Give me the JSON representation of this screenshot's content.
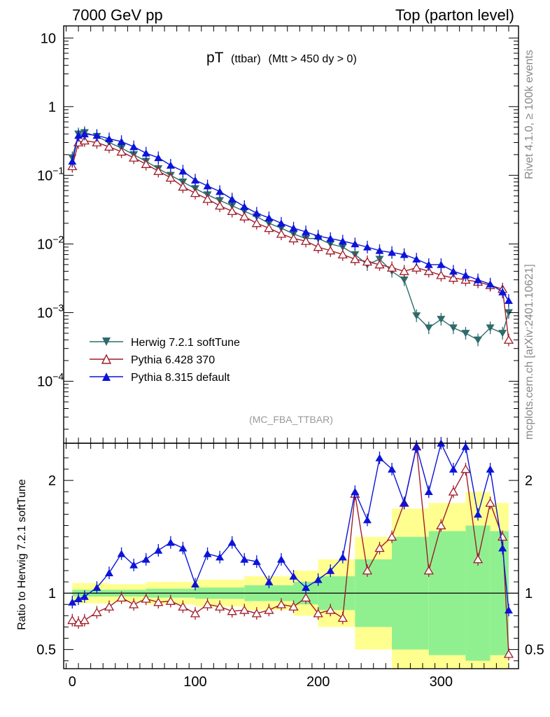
{
  "header": {
    "left": "7000 GeV pp",
    "right": "Top (parton level)"
  },
  "side": {
    "rivet": "Rivet 4.1.0, ≥ 100k events",
    "mcplots": "mcplots.cern.ch [arXiv:2401.10621]"
  },
  "main_title": {
    "pt": "pT",
    "sub": "(ttbar)",
    "cut": "(Mtt > 450 dy > 0)"
  },
  "analysis": "(MC_FBA_TTBAR)",
  "ratio_ylabel": "Ratio to Herwig 7.2.1 softTune",
  "legend": [
    {
      "label": "Herwig 7.2.1 softTune",
      "color": "#2e6b6b",
      "marker": "down-filled"
    },
    {
      "label": "Pythia 6.428 370",
      "color": "#a01c2a",
      "marker": "up-open"
    },
    {
      "label": "Pythia 8.315 default",
      "color": "#0b14d8",
      "marker": "up-filled"
    }
  ],
  "colors": {
    "band_stat": "#90f090",
    "band_tot": "#ffff90",
    "frame": "#000000",
    "side_text": "#888888"
  },
  "chart_data": {
    "type": "line",
    "xlabel": "",
    "xlim": [
      -7,
      363
    ],
    "xticks": [
      0,
      100,
      200,
      300
    ],
    "main": {
      "yscale": "log",
      "ylim": [
        1.25e-05,
        15
      ],
      "yticks": [
        {
          "v": 10,
          "label": "10"
        },
        {
          "v": 1,
          "label": "1"
        },
        {
          "v": 0.1,
          "label": "10",
          "exp": "−1"
        },
        {
          "v": 0.01,
          "label": "10",
          "exp": "−2"
        },
        {
          "v": 0.001,
          "label": "10",
          "exp": "−3"
        },
        {
          "v": 0.0001,
          "label": "10",
          "exp": "−4"
        }
      ]
    },
    "ratio": {
      "yscale": "linear",
      "ylim": [
        0.33,
        2.33
      ],
      "yticks": [
        {
          "v": 0.5,
          "label": "0.5"
        },
        {
          "v": 1,
          "label": "1"
        },
        {
          "v": 2,
          "label": "2"
        }
      ]
    },
    "series": [
      {
        "name": "Herwig 7.2.1 softTune",
        "x": [
          0,
          5,
          10,
          20,
          30,
          40,
          50,
          60,
          70,
          80,
          90,
          100,
          110,
          120,
          130,
          140,
          150,
          160,
          170,
          180,
          190,
          200,
          210,
          220,
          230,
          240,
          250,
          260,
          270,
          280,
          290,
          300,
          310,
          320,
          330,
          340,
          350,
          355
        ],
        "y": [
          0.18,
          0.4,
          0.42,
          0.37,
          0.3,
          0.25,
          0.2,
          0.16,
          0.125,
          0.1,
          0.08,
          0.064,
          0.052,
          0.043,
          0.036,
          0.03,
          0.025,
          0.02,
          0.017,
          0.014,
          0.012,
          0.012,
          0.01,
          0.009,
          0.007,
          0.005,
          0.006,
          0.004,
          0.003,
          0.0009,
          0.0006,
          0.0008,
          0.0006,
          0.0005,
          0.0004,
          0.0006,
          0.0005,
          0.001
        ]
      },
      {
        "name": "Pythia 6.428 370",
        "x": [
          0,
          5,
          10,
          20,
          30,
          40,
          50,
          60,
          70,
          80,
          90,
          100,
          110,
          120,
          130,
          140,
          150,
          160,
          170,
          180,
          190,
          200,
          210,
          220,
          230,
          240,
          250,
          260,
          270,
          280,
          290,
          300,
          310,
          320,
          330,
          340,
          350,
          355
        ],
        "y": [
          0.135,
          0.3,
          0.32,
          0.3,
          0.26,
          0.22,
          0.18,
          0.145,
          0.115,
          0.092,
          0.068,
          0.055,
          0.045,
          0.036,
          0.03,
          0.025,
          0.02,
          0.017,
          0.014,
          0.012,
          0.011,
          0.009,
          0.008,
          0.007,
          0.006,
          0.0055,
          0.005,
          0.0045,
          0.004,
          0.0045,
          0.004,
          0.0035,
          0.0032,
          0.003,
          0.0028,
          0.0025,
          0.0022,
          0.0004
        ]
      },
      {
        "name": "Pythia 8.315 default",
        "x": [
          0,
          5,
          10,
          20,
          30,
          40,
          50,
          60,
          70,
          80,
          90,
          100,
          110,
          120,
          130,
          140,
          150,
          160,
          170,
          180,
          190,
          200,
          210,
          220,
          230,
          240,
          250,
          260,
          270,
          280,
          290,
          300,
          310,
          320,
          330,
          340,
          350,
          355
        ],
        "y": [
          0.16,
          0.38,
          0.4,
          0.38,
          0.34,
          0.31,
          0.26,
          0.21,
          0.18,
          0.14,
          0.115,
          0.085,
          0.07,
          0.058,
          0.045,
          0.035,
          0.028,
          0.024,
          0.02,
          0.017,
          0.015,
          0.013,
          0.012,
          0.011,
          0.01,
          0.009,
          0.008,
          0.0075,
          0.007,
          0.006,
          0.005,
          0.005,
          0.004,
          0.0035,
          0.003,
          0.0026,
          0.002,
          0.0015
        ]
      }
    ],
    "ratio_series": [
      {
        "name": "Pythia 6.428 370",
        "x": [
          0,
          5,
          10,
          20,
          30,
          40,
          50,
          60,
          70,
          80,
          90,
          100,
          110,
          120,
          130,
          140,
          150,
          160,
          170,
          180,
          190,
          200,
          210,
          220,
          230,
          240,
          250,
          260,
          270,
          280,
          290,
          300,
          310,
          320,
          330,
          340,
          350,
          355
        ],
        "y": [
          0.76,
          0.74,
          0.76,
          0.83,
          0.88,
          0.96,
          0.9,
          0.95,
          0.92,
          0.93,
          0.88,
          0.82,
          0.9,
          0.88,
          0.84,
          0.85,
          0.82,
          0.85,
          0.9,
          0.88,
          0.96,
          0.82,
          0.85,
          0.78,
          1.88,
          1.2,
          1.4,
          1.5,
          1.8,
          2.3,
          1.2,
          1.6,
          1.9,
          2.1,
          1.3,
          1.8,
          1.5,
          0.46
        ]
      },
      {
        "name": "Pythia 8.315 default",
        "x": [
          0,
          5,
          10,
          20,
          30,
          40,
          50,
          60,
          70,
          80,
          90,
          100,
          110,
          120,
          130,
          140,
          150,
          160,
          170,
          180,
          190,
          200,
          210,
          220,
          230,
          240,
          250,
          260,
          270,
          280,
          290,
          300,
          310,
          320,
          330,
          340,
          350,
          355
        ],
        "y": [
          0.92,
          0.95,
          0.97,
          1.05,
          1.18,
          1.35,
          1.25,
          1.3,
          1.38,
          1.45,
          1.4,
          1.08,
          1.35,
          1.32,
          1.45,
          1.3,
          1.28,
          1.1,
          1.3,
          1.15,
          1.05,
          1.12,
          1.2,
          1.32,
          1.9,
          1.65,
          2.2,
          2.1,
          1.8,
          2.3,
          1.9,
          2.4,
          2.1,
          2.3,
          1.7,
          2.1,
          1.4,
          0.85
        ]
      }
    ],
    "bands": [
      {
        "x0": 0,
        "x1": 30,
        "stat": 0.03,
        "tot": 0.09
      },
      {
        "x0": 30,
        "x1": 60,
        "stat": 0.03,
        "tot": 0.08
      },
      {
        "x0": 60,
        "x1": 100,
        "stat": 0.04,
        "tot": 0.1
      },
      {
        "x0": 100,
        "x1": 140,
        "stat": 0.05,
        "tot": 0.12
      },
      {
        "x0": 140,
        "x1": 180,
        "stat": 0.07,
        "tot": 0.15
      },
      {
        "x0": 180,
        "x1": 200,
        "stat": 0.1,
        "tot": 0.2
      },
      {
        "x0": 200,
        "x1": 230,
        "stat": 0.15,
        "tot": 0.3
      },
      {
        "x0": 230,
        "x1": 260,
        "stat": 0.3,
        "tot": 0.5
      },
      {
        "x0": 260,
        "x1": 290,
        "stat": 0.5,
        "tot": 0.75
      },
      {
        "x0": 290,
        "x1": 320,
        "stat": 0.55,
        "tot": 0.8
      },
      {
        "x0": 320,
        "x1": 340,
        "stat": 0.6,
        "tot": 0.9
      },
      {
        "x0": 340,
        "x1": 355,
        "stat": 0.55,
        "tot": 0.8
      }
    ]
  }
}
